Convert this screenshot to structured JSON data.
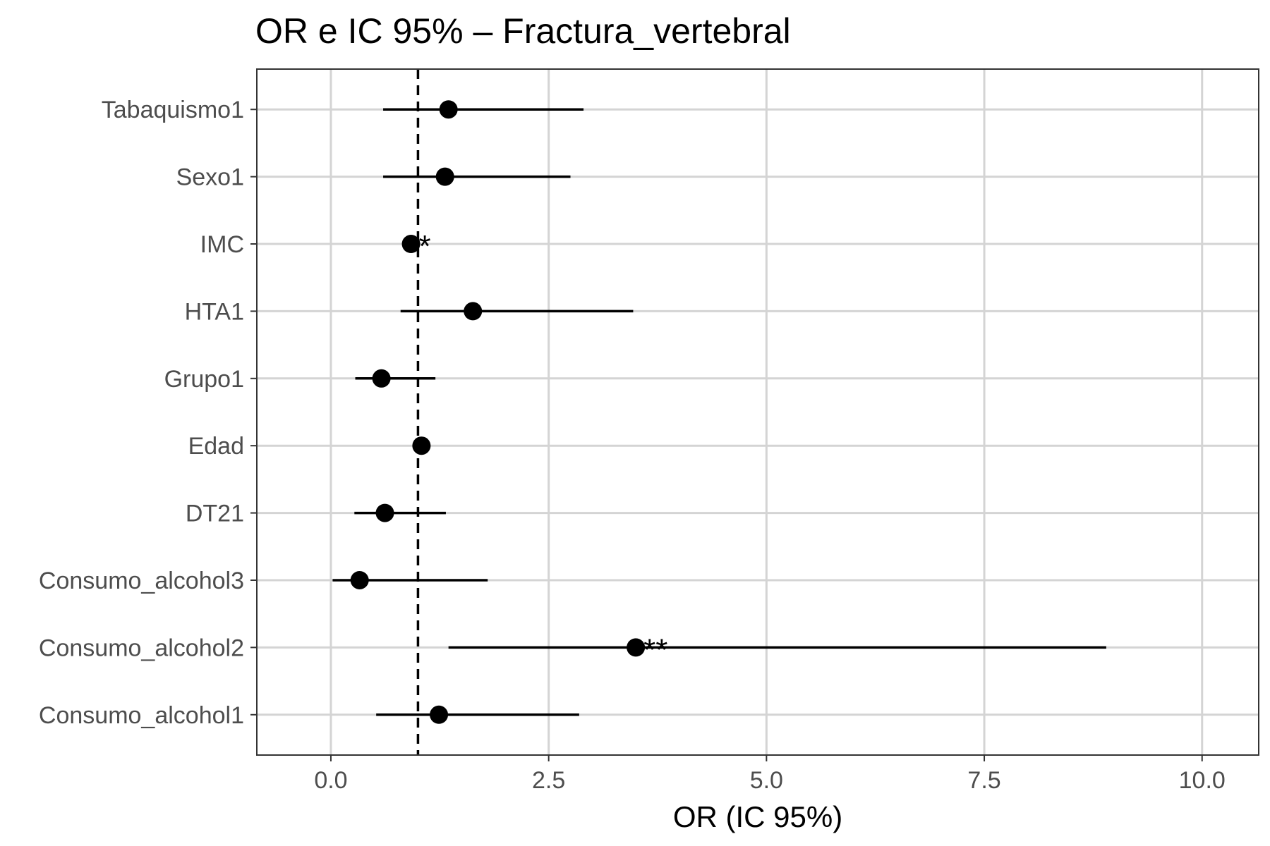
{
  "chart_data": {
    "type": "scatter",
    "title": "OR e IC 95% – Fractura_vertebral",
    "xlabel": "OR (IC 95%)",
    "ylabel": "",
    "xlim": [
      -0.85,
      10.65
    ],
    "xticks": [
      0,
      2.5,
      5,
      7.5,
      10
    ],
    "xtick_labels": [
      "0.0",
      "2.5",
      "5.0",
      "7.5",
      "10.0"
    ],
    "reference_line": 1,
    "grid": true,
    "legend": "none",
    "rows": [
      {
        "label": "Tabaquismo1",
        "or": 1.35,
        "low": 0.6,
        "high": 2.9,
        "sig": ""
      },
      {
        "label": "Sexo1",
        "or": 1.31,
        "low": 0.6,
        "high": 2.75,
        "sig": ""
      },
      {
        "label": "IMC",
        "or": 0.92,
        "low": 0.88,
        "high": 0.97,
        "sig": "*"
      },
      {
        "label": "HTA1",
        "or": 1.63,
        "low": 0.8,
        "high": 3.47,
        "sig": ""
      },
      {
        "label": "Grupo1",
        "or": 0.58,
        "low": 0.28,
        "high": 1.2,
        "sig": ""
      },
      {
        "label": "Edad",
        "or": 1.04,
        "low": 1.0,
        "high": 1.08,
        "sig": ""
      },
      {
        "label": "DT21",
        "or": 0.62,
        "low": 0.27,
        "high": 1.32,
        "sig": ""
      },
      {
        "label": "Consumo_alcohol3",
        "or": 0.33,
        "low": 0.02,
        "high": 1.8,
        "sig": ""
      },
      {
        "label": "Consumo_alcohol2",
        "or": 3.5,
        "low": 1.35,
        "high": 8.9,
        "sig": "**"
      },
      {
        "label": "Consumo_alcohol1",
        "or": 1.24,
        "low": 0.52,
        "high": 2.85,
        "sig": ""
      }
    ]
  }
}
